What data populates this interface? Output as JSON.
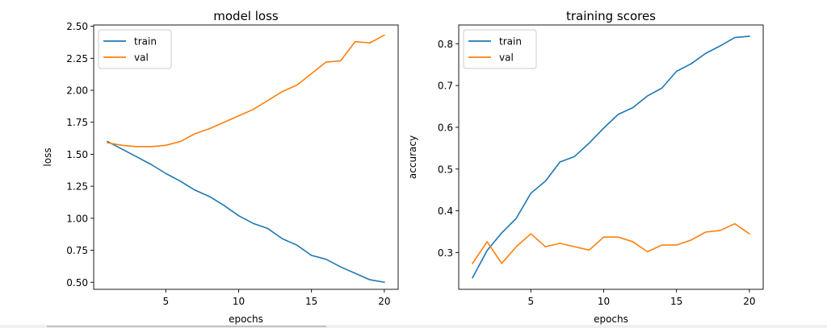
{
  "chart_data": [
    {
      "type": "line",
      "title": "model loss",
      "xlabel": "epochs",
      "ylabel": "loss",
      "x": [
        1,
        2,
        3,
        4,
        5,
        6,
        7,
        8,
        9,
        10,
        11,
        12,
        13,
        14,
        15,
        16,
        17,
        18,
        19,
        20
      ],
      "xlim": [
        0.05,
        20.95
      ],
      "ylim": [
        0.445,
        2.51
      ],
      "xticks": [
        5,
        10,
        15,
        20
      ],
      "xtick_labels": [
        "5",
        "10",
        "15",
        "20"
      ],
      "yticks": [
        0.5,
        0.75,
        1.0,
        1.25,
        1.5,
        1.75,
        2.0,
        2.25,
        2.5
      ],
      "ytick_labels": [
        "0.50",
        "0.75",
        "1.00",
        "1.25",
        "1.50",
        "1.75",
        "2.00",
        "2.25",
        "2.50"
      ],
      "legend_position": "top-left",
      "grid": false,
      "series": [
        {
          "name": "train",
          "color": "#1f77b4",
          "values": [
            1.6,
            1.54,
            1.48,
            1.42,
            1.35,
            1.29,
            1.22,
            1.17,
            1.1,
            1.02,
            0.96,
            0.92,
            0.84,
            0.79,
            0.71,
            0.68,
            0.62,
            0.57,
            0.52,
            0.5
          ]
        },
        {
          "name": "val",
          "color": "#ff7f0e",
          "values": [
            1.59,
            1.57,
            1.56,
            1.56,
            1.57,
            1.6,
            1.66,
            1.7,
            1.75,
            1.8,
            1.85,
            1.92,
            1.99,
            2.04,
            2.13,
            2.22,
            2.23,
            2.38,
            2.37,
            2.43
          ]
        }
      ]
    },
    {
      "type": "line",
      "title": "training scores",
      "xlabel": "epochs",
      "ylabel": "accuracy",
      "x": [
        1,
        2,
        3,
        4,
        5,
        6,
        7,
        8,
        9,
        10,
        11,
        12,
        13,
        14,
        15,
        16,
        17,
        18,
        19,
        20
      ],
      "xlim": [
        0.05,
        20.95
      ],
      "ylim": [
        0.212,
        0.845
      ],
      "xticks": [
        5,
        10,
        15,
        20
      ],
      "xtick_labels": [
        "5",
        "10",
        "15",
        "20"
      ],
      "yticks": [
        0.3,
        0.4,
        0.5,
        0.6,
        0.7,
        0.8
      ],
      "ytick_labels": [
        "0.3",
        "0.4",
        "0.5",
        "0.6",
        "0.7",
        "0.8"
      ],
      "legend_position": "top-left",
      "grid": false,
      "series": [
        {
          "name": "train",
          "color": "#1f77b4",
          "values": [
            0.24,
            0.305,
            0.347,
            0.382,
            0.442,
            0.471,
            0.517,
            0.53,
            0.562,
            0.598,
            0.631,
            0.647,
            0.675,
            0.694,
            0.734,
            0.752,
            0.777,
            0.795,
            0.815,
            0.818
          ]
        },
        {
          "name": "val",
          "color": "#ff7f0e",
          "values": [
            0.274,
            0.326,
            0.274,
            0.314,
            0.345,
            0.314,
            0.322,
            0.314,
            0.306,
            0.337,
            0.337,
            0.326,
            0.302,
            0.318,
            0.318,
            0.33,
            0.349,
            0.353,
            0.369,
            0.345
          ]
        }
      ]
    }
  ]
}
